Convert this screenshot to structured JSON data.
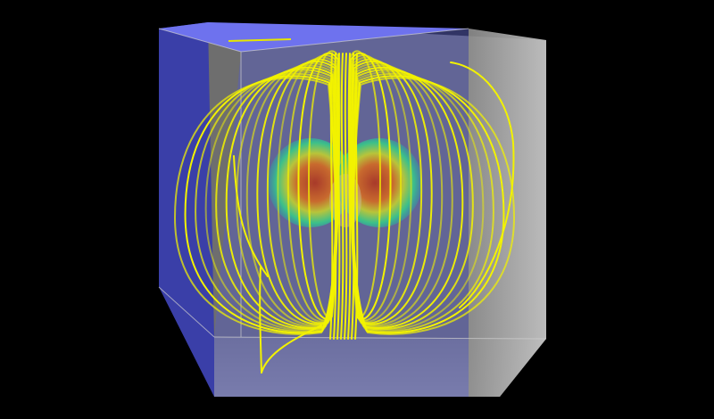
{
  "scene": {
    "background": "#000000",
    "box": {
      "left_face_color": "#3a3fa8",
      "top_face_color": "#6e72ee",
      "back_face_color": "#8a8a8a",
      "floor_color": "#9a9a9a",
      "right_face_color": "#b8b8b8",
      "edge_color": "#d8d8d8"
    },
    "field_lines": {
      "color": "#f2f200",
      "count_per_side": 14
    },
    "core": {
      "colors": [
        "#1aa0b8",
        "#3cc08a",
        "#b8c43a",
        "#c86a2e",
        "#a83a2a"
      ]
    },
    "icon": "magnetic-field-streamlines"
  }
}
